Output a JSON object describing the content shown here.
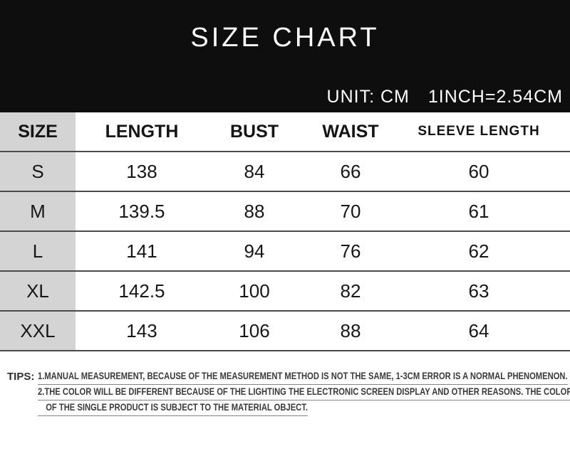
{
  "chart_data": {
    "type": "table",
    "title": "SIZE CHART",
    "unit_label": "UNIT: CM",
    "conversion_label": "1INCH=2.54CM",
    "columns": [
      "SIZE",
      "LENGTH",
      "BUST",
      "WAIST",
      "SLEEVE LENGTH"
    ],
    "rows": [
      [
        "S",
        "138",
        "84",
        "66",
        "60"
      ],
      [
        "M",
        "139.5",
        "88",
        "70",
        "61"
      ],
      [
        "L",
        "141",
        "94",
        "76",
        "62"
      ],
      [
        "XL",
        "142.5",
        "100",
        "82",
        "63"
      ],
      [
        "XXL",
        "143",
        "106",
        "88",
        "64"
      ]
    ]
  },
  "tips": {
    "label": "TIPS:",
    "lines": [
      {
        "num": "1",
        "text": ".MANUAL MEASUREMENT, BECAUSE OF THE MEASUREMENT METHOD IS NOT THE SAME, 1-3CM ERROR IS A NORMAL PHENOMENON."
      },
      {
        "num": "2",
        "text": ".THE COLOR WILL BE DIFFERENT BECAUSE OF THE LIGHTING THE ELECTRONIC SCREEN DISPLAY AND OTHER REASONS. THE COLOR"
      },
      {
        "num": "",
        "text": "OF THE SINGLE PRODUCT IS SUBJECT TO THE MATERIAL OBJECT."
      }
    ]
  },
  "colors": {
    "banner_bg": "#0e0e0e",
    "banner_text": "#ffffff",
    "size_column_bg": "#d4d4d4",
    "row_divider": "#4a4a4a",
    "table_text": "#171717",
    "tips_text": "#3a3a3a",
    "tips_underline": "#858585"
  }
}
